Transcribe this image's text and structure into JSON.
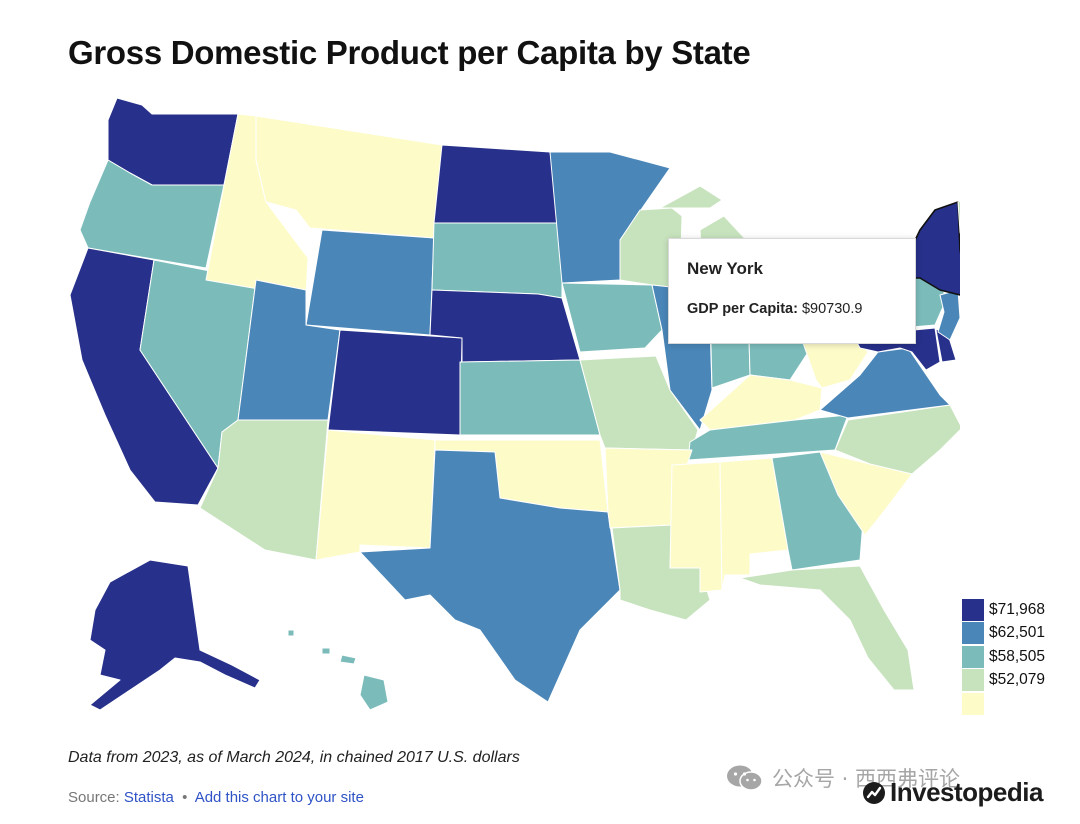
{
  "title": "Gross Domestic Product per Capita by State",
  "colors": {
    "tier1": "#27308a",
    "tier2": "#4a86b8",
    "tier3": "#7bbcbb",
    "tier4": "#c7e3bd",
    "tier5": "#fdfbc8"
  },
  "tooltip": {
    "state": "New York",
    "metric_label": "GDP per Capita:",
    "metric_value": "$90730.9"
  },
  "legend": {
    "items": [
      {
        "label": "$71,968",
        "color": "#27308a"
      },
      {
        "label": "$62,501",
        "color": "#4a86b8"
      },
      {
        "label": "$58,505",
        "color": "#7bbcbb"
      },
      {
        "label": "$52,079",
        "color": "#c7e3bd"
      },
      {
        "label": "",
        "color": "#fdfbc8"
      }
    ]
  },
  "note": "Data from 2023, as of March 2024, in chained 2017 U.S. dollars",
  "source": {
    "prefix": "Source:",
    "name": "Statista",
    "separator": "•",
    "embed_label": "Add this chart to your site"
  },
  "watermark": {
    "text": "公众号 · 西西弗评论",
    "icon": "wechat-icon"
  },
  "brand": {
    "name": "Investopedia",
    "icon": "investopedia-logo-icon"
  }
}
